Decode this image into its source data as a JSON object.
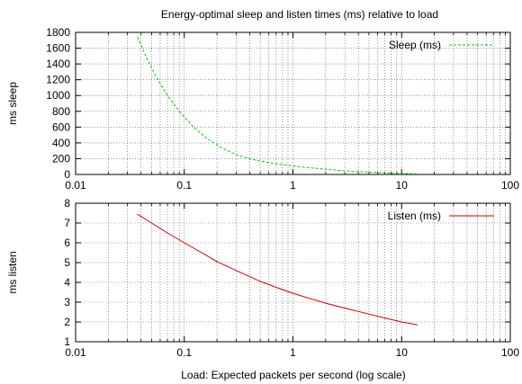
{
  "chart_data": {
    "title": "Energy-optimal sleep and listen times (ms) relative to load",
    "xlabel": "Load:  Expected packets per second (log scale)",
    "charts": [
      {
        "type": "line",
        "ylabel": "ms sleep",
        "xscale": "log",
        "xlim": [
          0.01,
          100
        ],
        "ylim": [
          0,
          1800
        ],
        "yticks": [
          0,
          200,
          400,
          600,
          800,
          1000,
          1200,
          1400,
          1600,
          1800
        ],
        "xticks": [
          0.01,
          0.1,
          1,
          10,
          100
        ],
        "xtick_labels": [
          "0.01",
          "0.1",
          "1",
          "10",
          "100"
        ],
        "grid": true,
        "legend_position": "top-right",
        "series": [
          {
            "name": "Sleep (ms)",
            "color": "#00cc00",
            "style": "dashed",
            "x": [
              0.037,
              0.045,
              0.055,
              0.07,
              0.09,
              0.12,
              0.16,
              0.22,
              0.3,
              0.42,
              0.6,
              0.85,
              1.2,
              1.7,
              2.5,
              3.5,
              5,
              7,
              10,
              14
            ],
            "y": [
              1740,
              1480,
              1240,
              1000,
              800,
              610,
              460,
              340,
              250,
              190,
              150,
              120,
              95,
              75,
              55,
              40,
              30,
              20,
              12,
              8
            ]
          }
        ]
      },
      {
        "type": "line",
        "ylabel": "ms listen",
        "xscale": "log",
        "xlim": [
          0.01,
          100
        ],
        "ylim": [
          1,
          8
        ],
        "yticks": [
          1,
          2,
          3,
          4,
          5,
          6,
          7,
          8
        ],
        "xticks": [
          0.01,
          0.1,
          1,
          10,
          100
        ],
        "xtick_labels": [
          "0.01",
          "0.1",
          "1",
          "10",
          "100"
        ],
        "grid": true,
        "legend_position": "top-right",
        "series": [
          {
            "name": "Listen (ms)",
            "color": "#cc0000",
            "style": "solid",
            "x": [
              0.037,
              0.05,
              0.07,
              0.1,
              0.15,
              0.2,
              0.3,
              0.5,
              0.7,
              1,
              1.5,
              2,
              3,
              5,
              7,
              10,
              14
            ],
            "y": [
              7.45,
              7.0,
              6.5,
              6.0,
              5.45,
              5.05,
              4.6,
              4.05,
              3.75,
              3.45,
              3.15,
              2.95,
              2.7,
              2.4,
              2.2,
              2.0,
              1.85
            ]
          }
        ]
      }
    ]
  }
}
